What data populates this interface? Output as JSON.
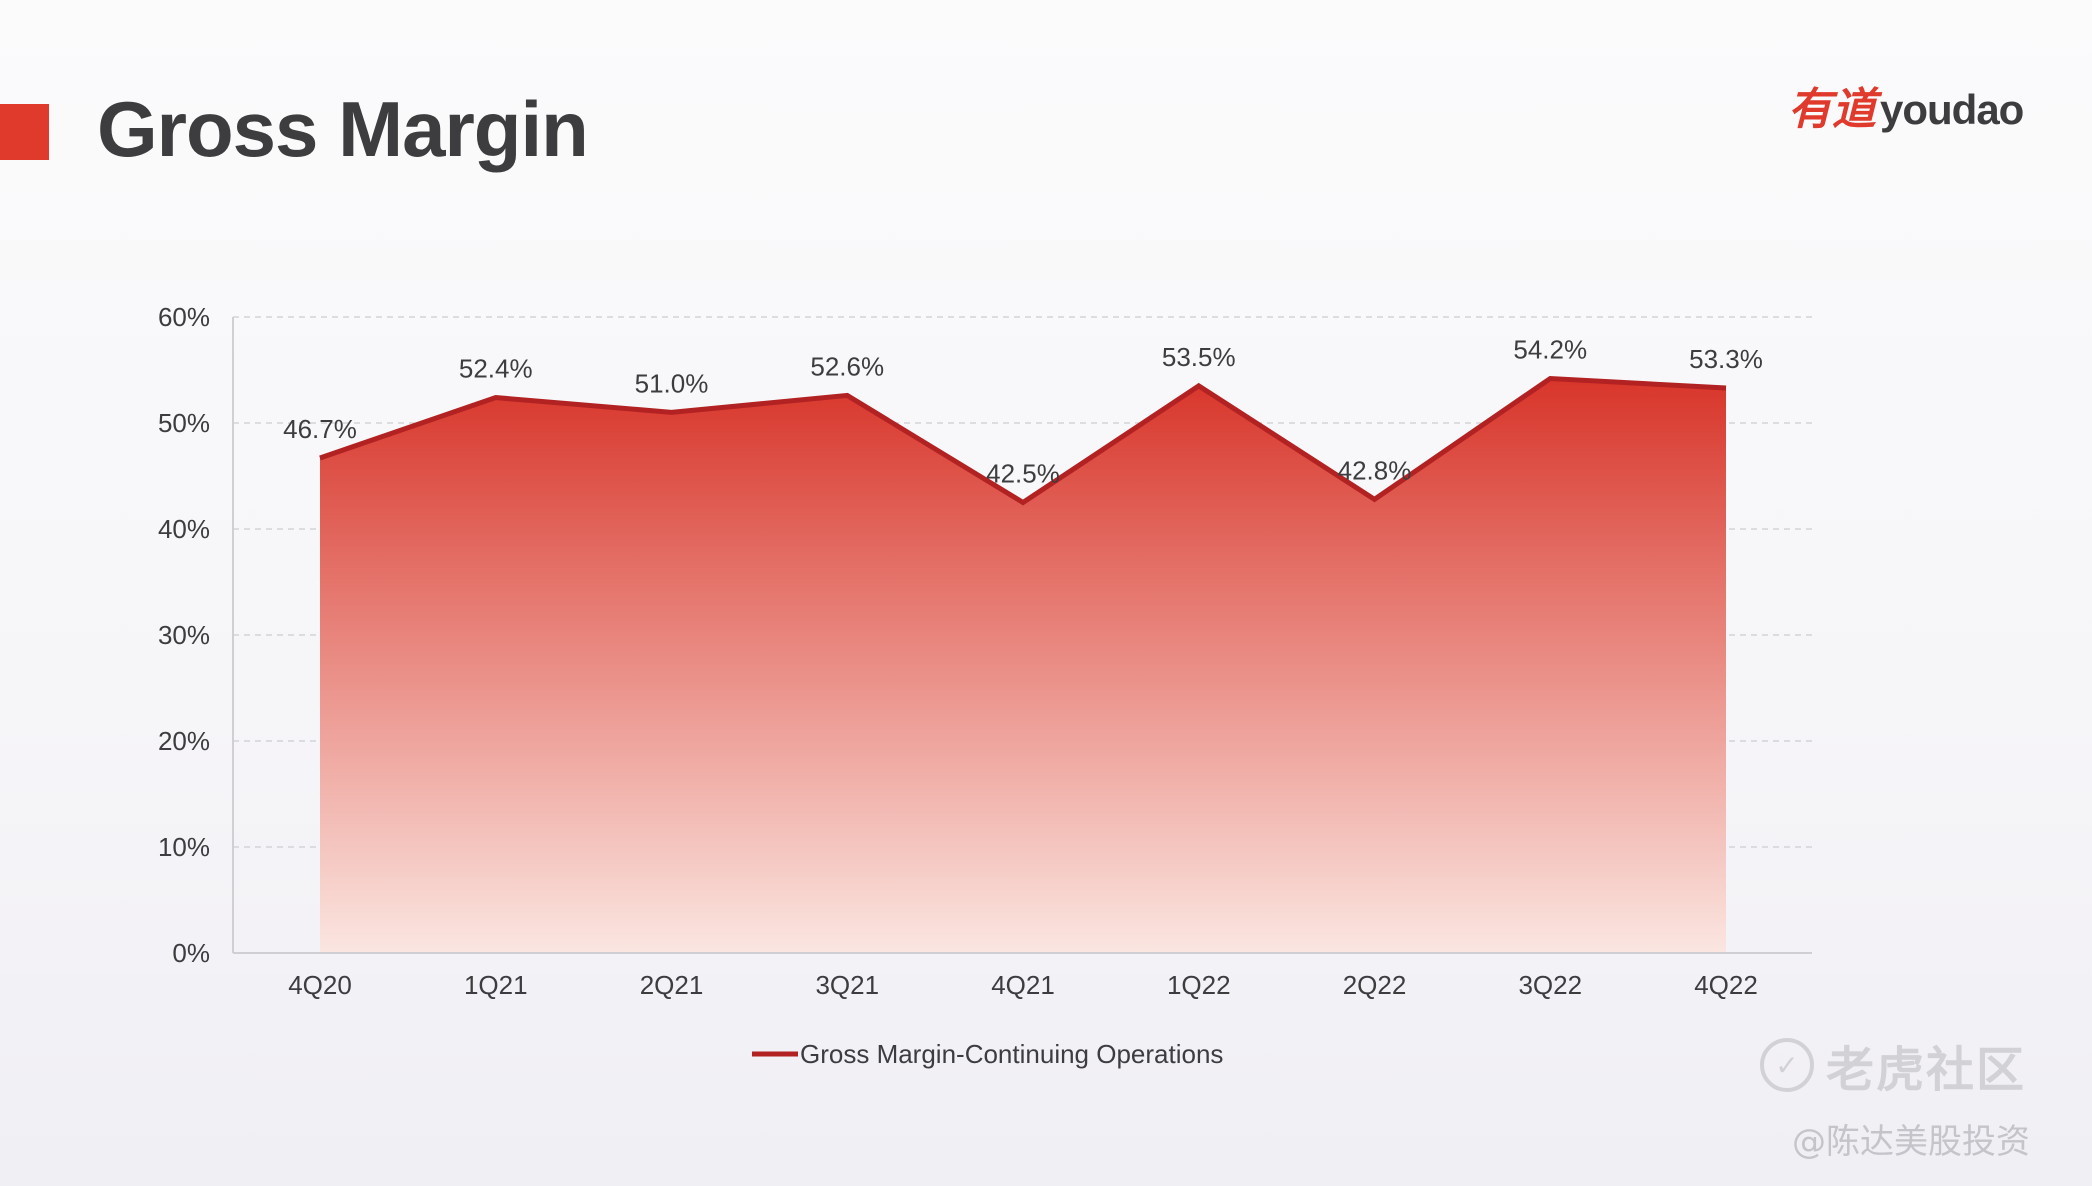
{
  "page": {
    "title": "Gross Margin"
  },
  "logo": {
    "cn": "有道",
    "en": "youdao"
  },
  "watermark": {
    "main": "老虎社区",
    "sub": "@陈达美股投资"
  },
  "colors": {
    "accent": "#e03a2c",
    "line": "#b22222",
    "fill_top": "#d8352a",
    "fill_bottom": "#fbe6e1",
    "text": "#3d3d3f"
  },
  "chart_data": {
    "type": "area",
    "title": "",
    "categories": [
      "4Q20",
      "1Q21",
      "2Q21",
      "3Q21",
      "4Q21",
      "1Q22",
      "2Q22",
      "3Q22",
      "4Q22"
    ],
    "series": [
      {
        "name": "Gross Margin-Continuing Operations",
        "values": [
          46.7,
          52.4,
          51.0,
          52.6,
          42.5,
          53.5,
          42.8,
          54.2,
          53.3
        ],
        "labels": [
          "46.7%",
          "52.4%",
          "51.0%",
          "52.6%",
          "42.5%",
          "53.5%",
          "42.8%",
          "54.2%",
          "53.3%"
        ]
      }
    ],
    "ylim": [
      0,
      60
    ],
    "yticks": [
      0,
      10,
      20,
      30,
      40,
      50,
      60
    ],
    "ytick_labels": [
      "0%",
      "10%",
      "20%",
      "30%",
      "40%",
      "50%",
      "60%"
    ],
    "xlabel": "",
    "ylabel": "",
    "grid": "horizontal-dashed",
    "legend": "bottom-center"
  }
}
